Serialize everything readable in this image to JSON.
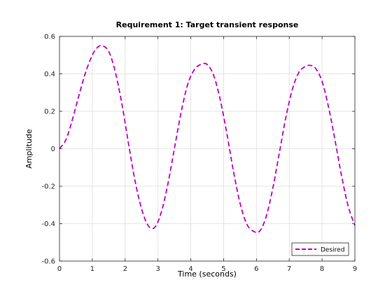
{
  "chart_data": {
    "type": "line",
    "title": "Requirement 1: Target transient response",
    "xlabel": "Time (seconds)",
    "ylabel": "Amplitude",
    "xlim": [
      0,
      9
    ],
    "ylim": [
      -0.6,
      0.6
    ],
    "xticks": [
      0,
      1,
      2,
      3,
      4,
      5,
      6,
      7,
      8,
      9
    ],
    "xtick_labels": [
      "0",
      "1",
      "2",
      "3",
      "4",
      "5",
      "6",
      "7",
      "8",
      "9"
    ],
    "yticks": [
      -0.6,
      -0.4,
      -0.2,
      0,
      0.2,
      0.4,
      0.6
    ],
    "ytick_labels": [
      "-0.6",
      "-0.4",
      "-0.2",
      "0",
      "0.2",
      "0.4",
      "0.6"
    ],
    "grid": true,
    "legend_position": "bottom-right",
    "series": [
      {
        "name": "Desired",
        "color": "#bf00bf",
        "line_style": "dashed",
        "x": [
          0,
          0.2,
          0.4,
          0.6,
          0.8,
          1.0,
          1.15,
          1.3,
          1.5,
          1.7,
          1.9,
          2.1,
          2.3,
          2.5,
          2.7,
          2.9,
          3.1,
          3.3,
          3.5,
          3.7,
          3.9,
          4.1,
          4.3,
          4.5,
          4.7,
          4.9,
          5.1,
          5.3,
          5.5,
          5.7,
          5.9,
          6.1,
          6.3,
          6.5,
          6.7,
          6.9,
          7.1,
          7.3,
          7.5,
          7.65,
          7.8,
          8.0,
          8.2,
          8.4,
          8.6,
          8.8,
          9.0
        ],
        "y": [
          0,
          0.05,
          0.16,
          0.29,
          0.41,
          0.5,
          0.54,
          0.55,
          0.52,
          0.41,
          0.24,
          0.03,
          -0.17,
          -0.32,
          -0.41,
          -0.42,
          -0.34,
          -0.19,
          0.0,
          0.19,
          0.34,
          0.42,
          0.45,
          0.45,
          0.39,
          0.26,
          0.08,
          -0.12,
          -0.29,
          -0.4,
          -0.44,
          -0.44,
          -0.36,
          -0.21,
          -0.02,
          0.17,
          0.32,
          0.41,
          0.44,
          0.445,
          0.43,
          0.36,
          0.22,
          0.04,
          -0.15,
          -0.31,
          -0.41
        ]
      }
    ]
  }
}
